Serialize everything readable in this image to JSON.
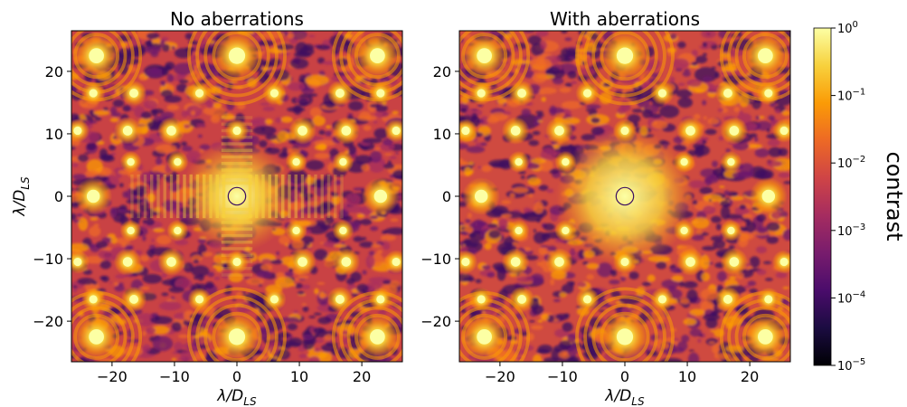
{
  "chart_data": [
    {
      "type": "heatmap",
      "title": "No aberrations",
      "xlabel": "λ/D_LS",
      "ylabel": "λ/D_LS",
      "xlim": [
        -26.5,
        26.5
      ],
      "ylim": [
        -26.5,
        26.5
      ],
      "xticks": [
        -20,
        -10,
        0,
        10,
        20
      ],
      "yticks": [
        -20,
        -10,
        0,
        10,
        20
      ],
      "xtick_labels": [
        "−20",
        "−10",
        "0",
        "10",
        "20"
      ],
      "ytick_labels": [
        "−20",
        "−10",
        "0",
        "10",
        "20"
      ],
      "grid": false,
      "colormap": "inferno",
      "log_scale": true
    },
    {
      "type": "heatmap",
      "title": "With aberrations",
      "xlabel": "λ/D_LS",
      "xlim": [
        -26.5,
        26.5
      ],
      "ylim": [
        -26.5,
        26.5
      ],
      "xticks": [
        -20,
        -10,
        0,
        10,
        20
      ],
      "yticks": [
        -20,
        -10,
        0,
        10,
        20
      ],
      "xtick_labels": [
        "−20",
        "−10",
        "0",
        "10",
        "20"
      ],
      "ytick_labels": [
        "−20",
        "−10",
        "0",
        "10",
        "20"
      ],
      "grid": false,
      "colormap": "inferno",
      "log_scale": true
    }
  ],
  "colorbar": {
    "label": "contrast",
    "scale": "log",
    "range": [
      1e-05,
      1
    ],
    "ticks": [
      {
        "value": 1,
        "base": "10",
        "exp": "0"
      },
      {
        "value": 0.1,
        "base": "10",
        "exp": "−1"
      },
      {
        "value": 0.01,
        "base": "10",
        "exp": "−2"
      },
      {
        "value": 0.001,
        "base": "10",
        "exp": "−3"
      },
      {
        "value": 0.0001,
        "base": "10",
        "exp": "−4"
      },
      {
        "value": 1e-05,
        "base": "10",
        "exp": "−5"
      }
    ],
    "colors": [
      "#000004",
      "#1b0c41",
      "#4a0c6b",
      "#781c6d",
      "#a52c60",
      "#cf4446",
      "#ed6925",
      "#fb9b06",
      "#f7d13d",
      "#fcffa4"
    ]
  },
  "axis_label_parts": {
    "main": "λ/D",
    "sub": "LS"
  }
}
